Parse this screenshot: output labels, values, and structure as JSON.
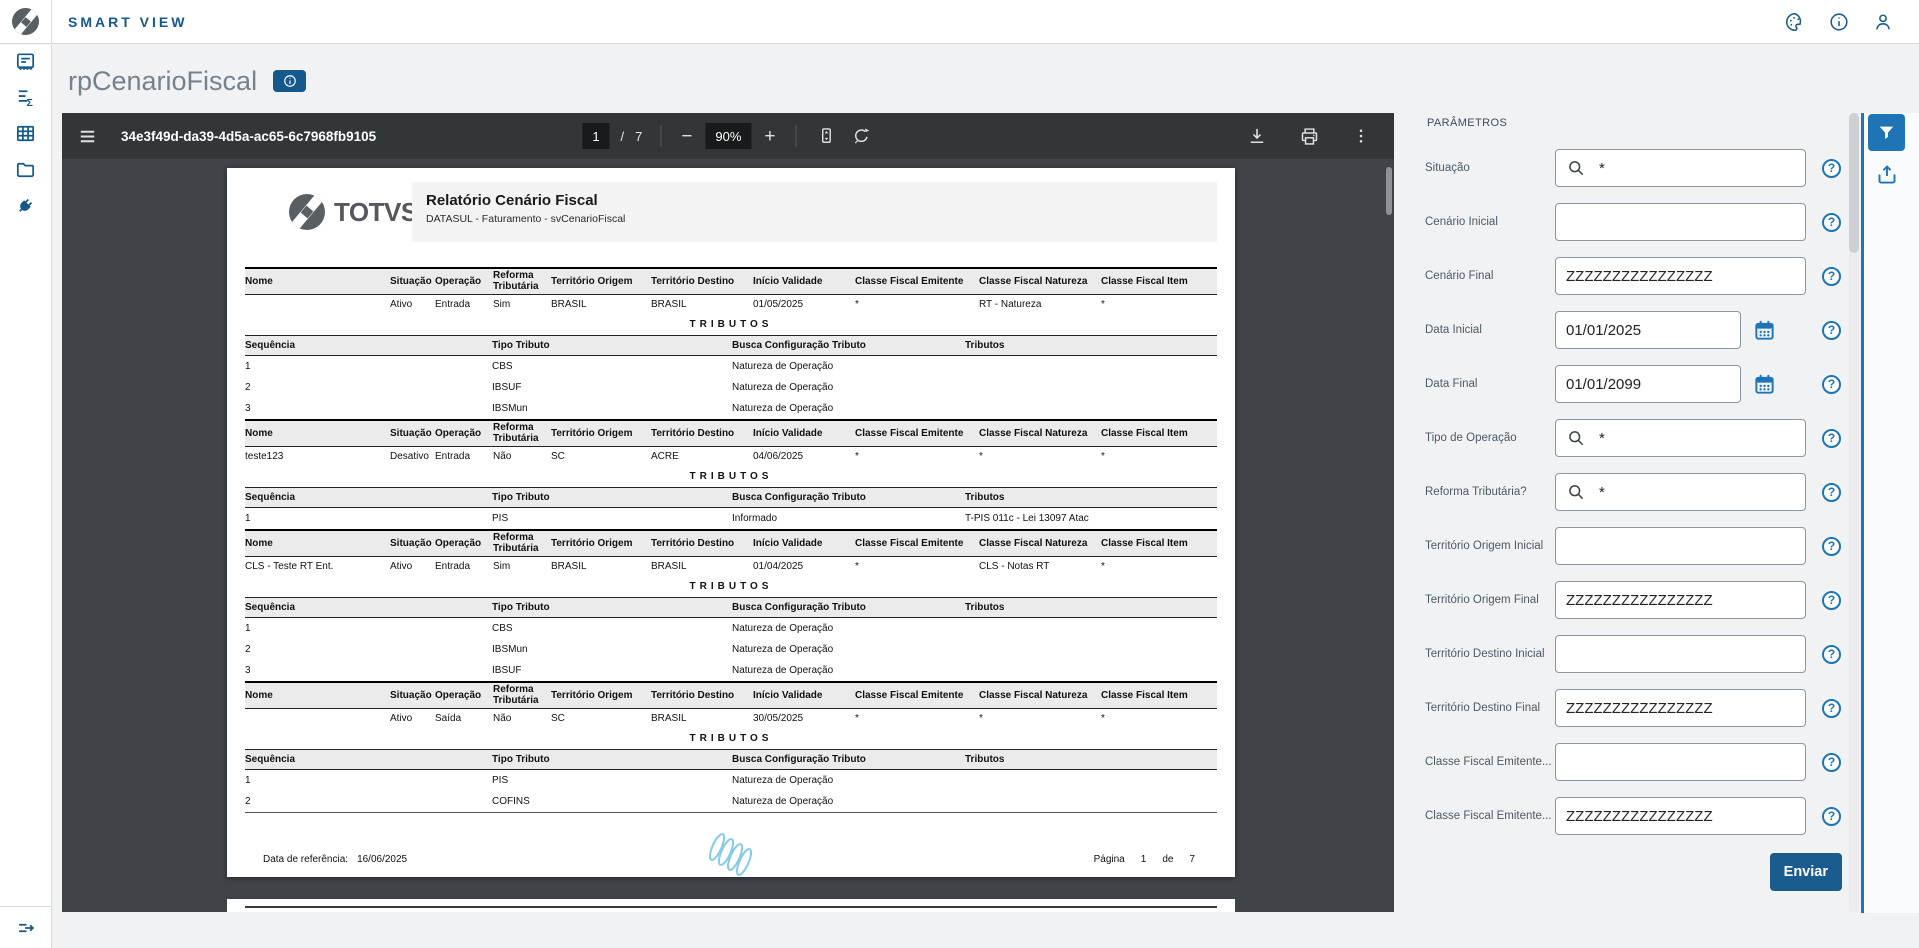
{
  "colors": {
    "primary": "#15588c",
    "accent": "#1f74b5",
    "submit_button": "#1b5c8e",
    "toolbar_bg": "#333639",
    "canvas_bg": "#404449",
    "watermark": "#85cbe8"
  },
  "topbar": {
    "app_title": "SMART VIEW"
  },
  "page": {
    "title": "rpCenarioFiscal"
  },
  "viewer": {
    "doc_id": "34e3f49d-da39-4d5a-ac65-6c7968fb9105",
    "page": {
      "current": "1",
      "separator": "/",
      "total": "7"
    },
    "zoom_level": "90%",
    "zoom_out_glyph": "−",
    "zoom_in_glyph": "+"
  },
  "report": {
    "logo_text": "TOTVS",
    "title": "Relatório Cenário Fiscal",
    "subtitle": "DATASUL - Faturamento - svCenarioFiscal",
    "main_headers": [
      "Nome",
      "Situação",
      "Operação",
      "Reforma Tributária",
      "Território Origem",
      "Território Destino",
      "Início Validade",
      "Classe Fiscal Emitente",
      "Classe Fiscal Natureza",
      "Classe Fiscal Item"
    ],
    "trib_headers": [
      "Sequência",
      "Tipo Tributo",
      "Busca Configuração Tributo",
      "Tributos"
    ],
    "tributos_label": "TRIBUTOS",
    "blocks": [
      {
        "row": [
          "",
          "Ativo",
          "Entrada",
          "Sim",
          "BRASIL",
          "BRASIL",
          "01/05/2025",
          "*",
          "RT - Natureza",
          "*"
        ],
        "tributos": [
          [
            "1",
            "CBS",
            "Natureza de Operação",
            ""
          ],
          [
            "2",
            "IBSUF",
            "Natureza de Operação",
            ""
          ],
          [
            "3",
            "IBSMun",
            "Natureza de Operação",
            ""
          ]
        ]
      },
      {
        "row": [
          "teste123",
          "Desativo",
          "Entrada",
          "Não",
          "SC",
          "ACRE",
          "04/06/2025",
          "*",
          "*",
          "*"
        ],
        "tributos": [
          [
            "1",
            "PIS",
            "Informado",
            "T-PIS 011c - Lei 13097 Atac"
          ]
        ]
      },
      {
        "row": [
          "CLS - Teste RT Ent.",
          "Ativo",
          "Entrada",
          "Sim",
          "BRASIL",
          "BRASIL",
          "01/04/2025",
          "*",
          "CLS - Notas RT",
          "*"
        ],
        "tributos": [
          [
            "1",
            "CBS",
            "Natureza de Operação",
            ""
          ],
          [
            "2",
            "IBSMun",
            "Natureza de Operação",
            ""
          ],
          [
            "3",
            "IBSUF",
            "Natureza de Operação",
            ""
          ]
        ]
      },
      {
        "row": [
          "",
          "Ativo",
          "Saída",
          "Não",
          "SC",
          "BRASIL",
          "30/05/2025",
          "*",
          "*",
          "*"
        ],
        "tributos": [
          [
            "1",
            "PIS",
            "Natureza de Operação",
            ""
          ],
          [
            "2",
            "COFINS",
            "Natureza de Operação",
            ""
          ]
        ]
      }
    ],
    "footer": {
      "ref_label": "Data de referência:",
      "ref_date": "16/06/2025",
      "page_label": "Página",
      "page_number": "1",
      "of_label": "de",
      "total_pages": "7"
    }
  },
  "params": {
    "title": "PARÂMETROS",
    "help_glyph": "?",
    "fields": [
      {
        "label": "Situação",
        "value": "*",
        "type": "search"
      },
      {
        "label": "Cenário Inicial",
        "value": "",
        "type": "text"
      },
      {
        "label": "Cenário Final",
        "value": "ZZZZZZZZZZZZZZZZ",
        "type": "text"
      },
      {
        "label": "Data Inicial",
        "value": "01/01/2025",
        "type": "date"
      },
      {
        "label": "Data Final",
        "value": "01/01/2099",
        "type": "date"
      },
      {
        "label": "Tipo de Operação",
        "value": "*",
        "type": "search"
      },
      {
        "label": "Reforma Tributária?",
        "value": "*",
        "type": "search"
      },
      {
        "label": "Território Origem Inicial",
        "value": "",
        "type": "text"
      },
      {
        "label": "Território Origem Final",
        "value": "ZZZZZZZZZZZZZZZZ",
        "type": "text"
      },
      {
        "label": "Território Destino Inicial",
        "value": "",
        "type": "text"
      },
      {
        "label": "Território Destino Final",
        "value": "ZZZZZZZZZZZZZZZZ",
        "type": "text"
      },
      {
        "label": "Classe Fiscal Emitente...",
        "value": "",
        "type": "text"
      },
      {
        "label": "Classe Fiscal Emitente...",
        "value": "ZZZZZZZZZZZZZZZZ",
        "type": "text"
      }
    ],
    "submit_label": "Enviar"
  }
}
